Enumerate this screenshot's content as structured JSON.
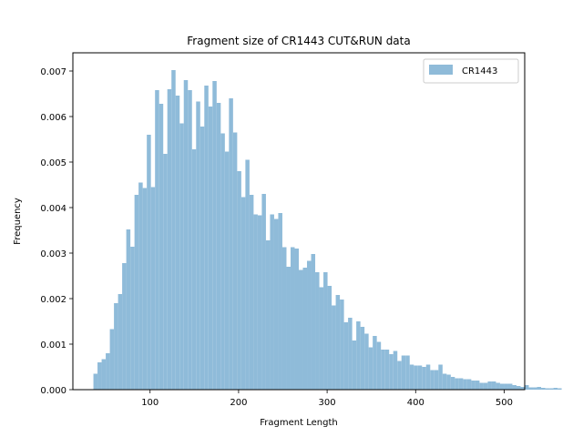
{
  "chart_data": {
    "type": "bar",
    "title": "Fragment size of CR1443 CUT&RUN data",
    "xlabel": "Fragment Length",
    "ylabel": "Frequency",
    "xlim": [
      12.8,
      523.2
    ],
    "ylim": [
      0,
      0.0074
    ],
    "xticks": [
      100,
      200,
      300,
      400,
      500
    ],
    "xtick_labels": [
      "100",
      "200",
      "300",
      "400",
      "500"
    ],
    "yticks": [
      0,
      0.001,
      0.002,
      0.003,
      0.004,
      0.005,
      0.006,
      0.007
    ],
    "ytick_labels": [
      "0.000",
      "0.001",
      "0.002",
      "0.003",
      "0.004",
      "0.005",
      "0.006",
      "0.007"
    ],
    "legend_position": "upper right",
    "bar_color": "#8fbbd9",
    "series": [
      {
        "name": "CR1443",
        "bin_start": 36,
        "bin_width": 4.64,
        "values": [
          0.00035,
          0.0006,
          0.00067,
          0.0008,
          0.00133,
          0.0019,
          0.0021,
          0.00278,
          0.00352,
          0.00314,
          0.00428,
          0.00455,
          0.00443,
          0.0056,
          0.00445,
          0.00658,
          0.00628,
          0.00518,
          0.0066,
          0.00702,
          0.00646,
          0.00585,
          0.0068,
          0.00658,
          0.00528,
          0.00633,
          0.00578,
          0.00668,
          0.00622,
          0.00678,
          0.0063,
          0.00563,
          0.00523,
          0.0064,
          0.00565,
          0.0048,
          0.00423,
          0.00505,
          0.00428,
          0.00385,
          0.00383,
          0.0043,
          0.00328,
          0.00385,
          0.00375,
          0.00388,
          0.00313,
          0.0027,
          0.00313,
          0.0031,
          0.00263,
          0.00268,
          0.00283,
          0.00298,
          0.00258,
          0.00225,
          0.00258,
          0.00228,
          0.00185,
          0.00208,
          0.00198,
          0.00148,
          0.00158,
          0.00108,
          0.0015,
          0.00138,
          0.00123,
          0.00093,
          0.00118,
          0.00105,
          0.00088,
          0.00088,
          0.00078,
          0.00085,
          0.00063,
          0.00075,
          0.00075,
          0.00055,
          0.00053,
          0.00053,
          0.0005,
          0.00055,
          0.00043,
          0.00043,
          0.00055,
          0.00035,
          0.00033,
          0.00028,
          0.00025,
          0.00025,
          0.00023,
          0.00023,
          0.0002,
          0.0002,
          0.00015,
          0.00015,
          0.00018,
          0.00018,
          0.00015,
          0.00013,
          0.00013,
          0.00013,
          0.0001,
          8e-05,
          6e-05,
          0.0001,
          5e-05,
          5e-05,
          6e-05,
          4e-05,
          3e-05,
          3e-05,
          4e-05,
          3e-05
        ]
      }
    ]
  }
}
